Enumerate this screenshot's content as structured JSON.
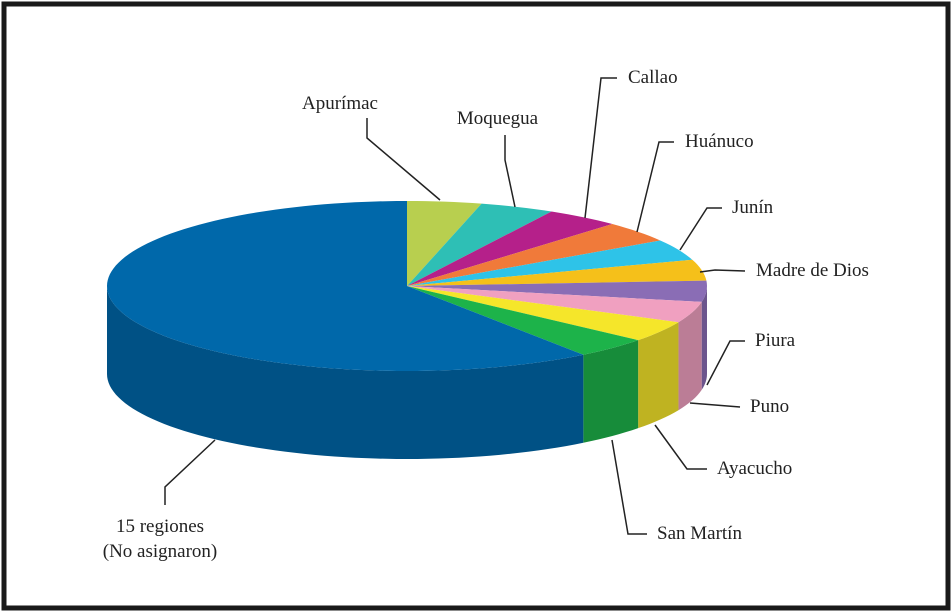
{
  "chart_data": {
    "type": "pie3d",
    "categories": [
      "Apurímac",
      "Moquegua",
      "Callao",
      "Huánuco",
      "Junín",
      "Madre de Dios",
      "Piura",
      "Puno",
      "Ayacucho",
      "San Martín",
      "15 regiones\n(No asignaron)"
    ],
    "values": [
      4,
      4,
      4,
      4,
      4,
      4,
      4,
      4,
      4,
      4,
      60
    ],
    "colors": [
      "#b8cf4f",
      "#2ebfb5",
      "#b5208a",
      "#f07a3a",
      "#2ec3e8",
      "#f5c01a",
      "#8a6db5",
      "#f0a0c0",
      "#f5e62a",
      "#1db34a",
      "#0068aa"
    ]
  }
}
